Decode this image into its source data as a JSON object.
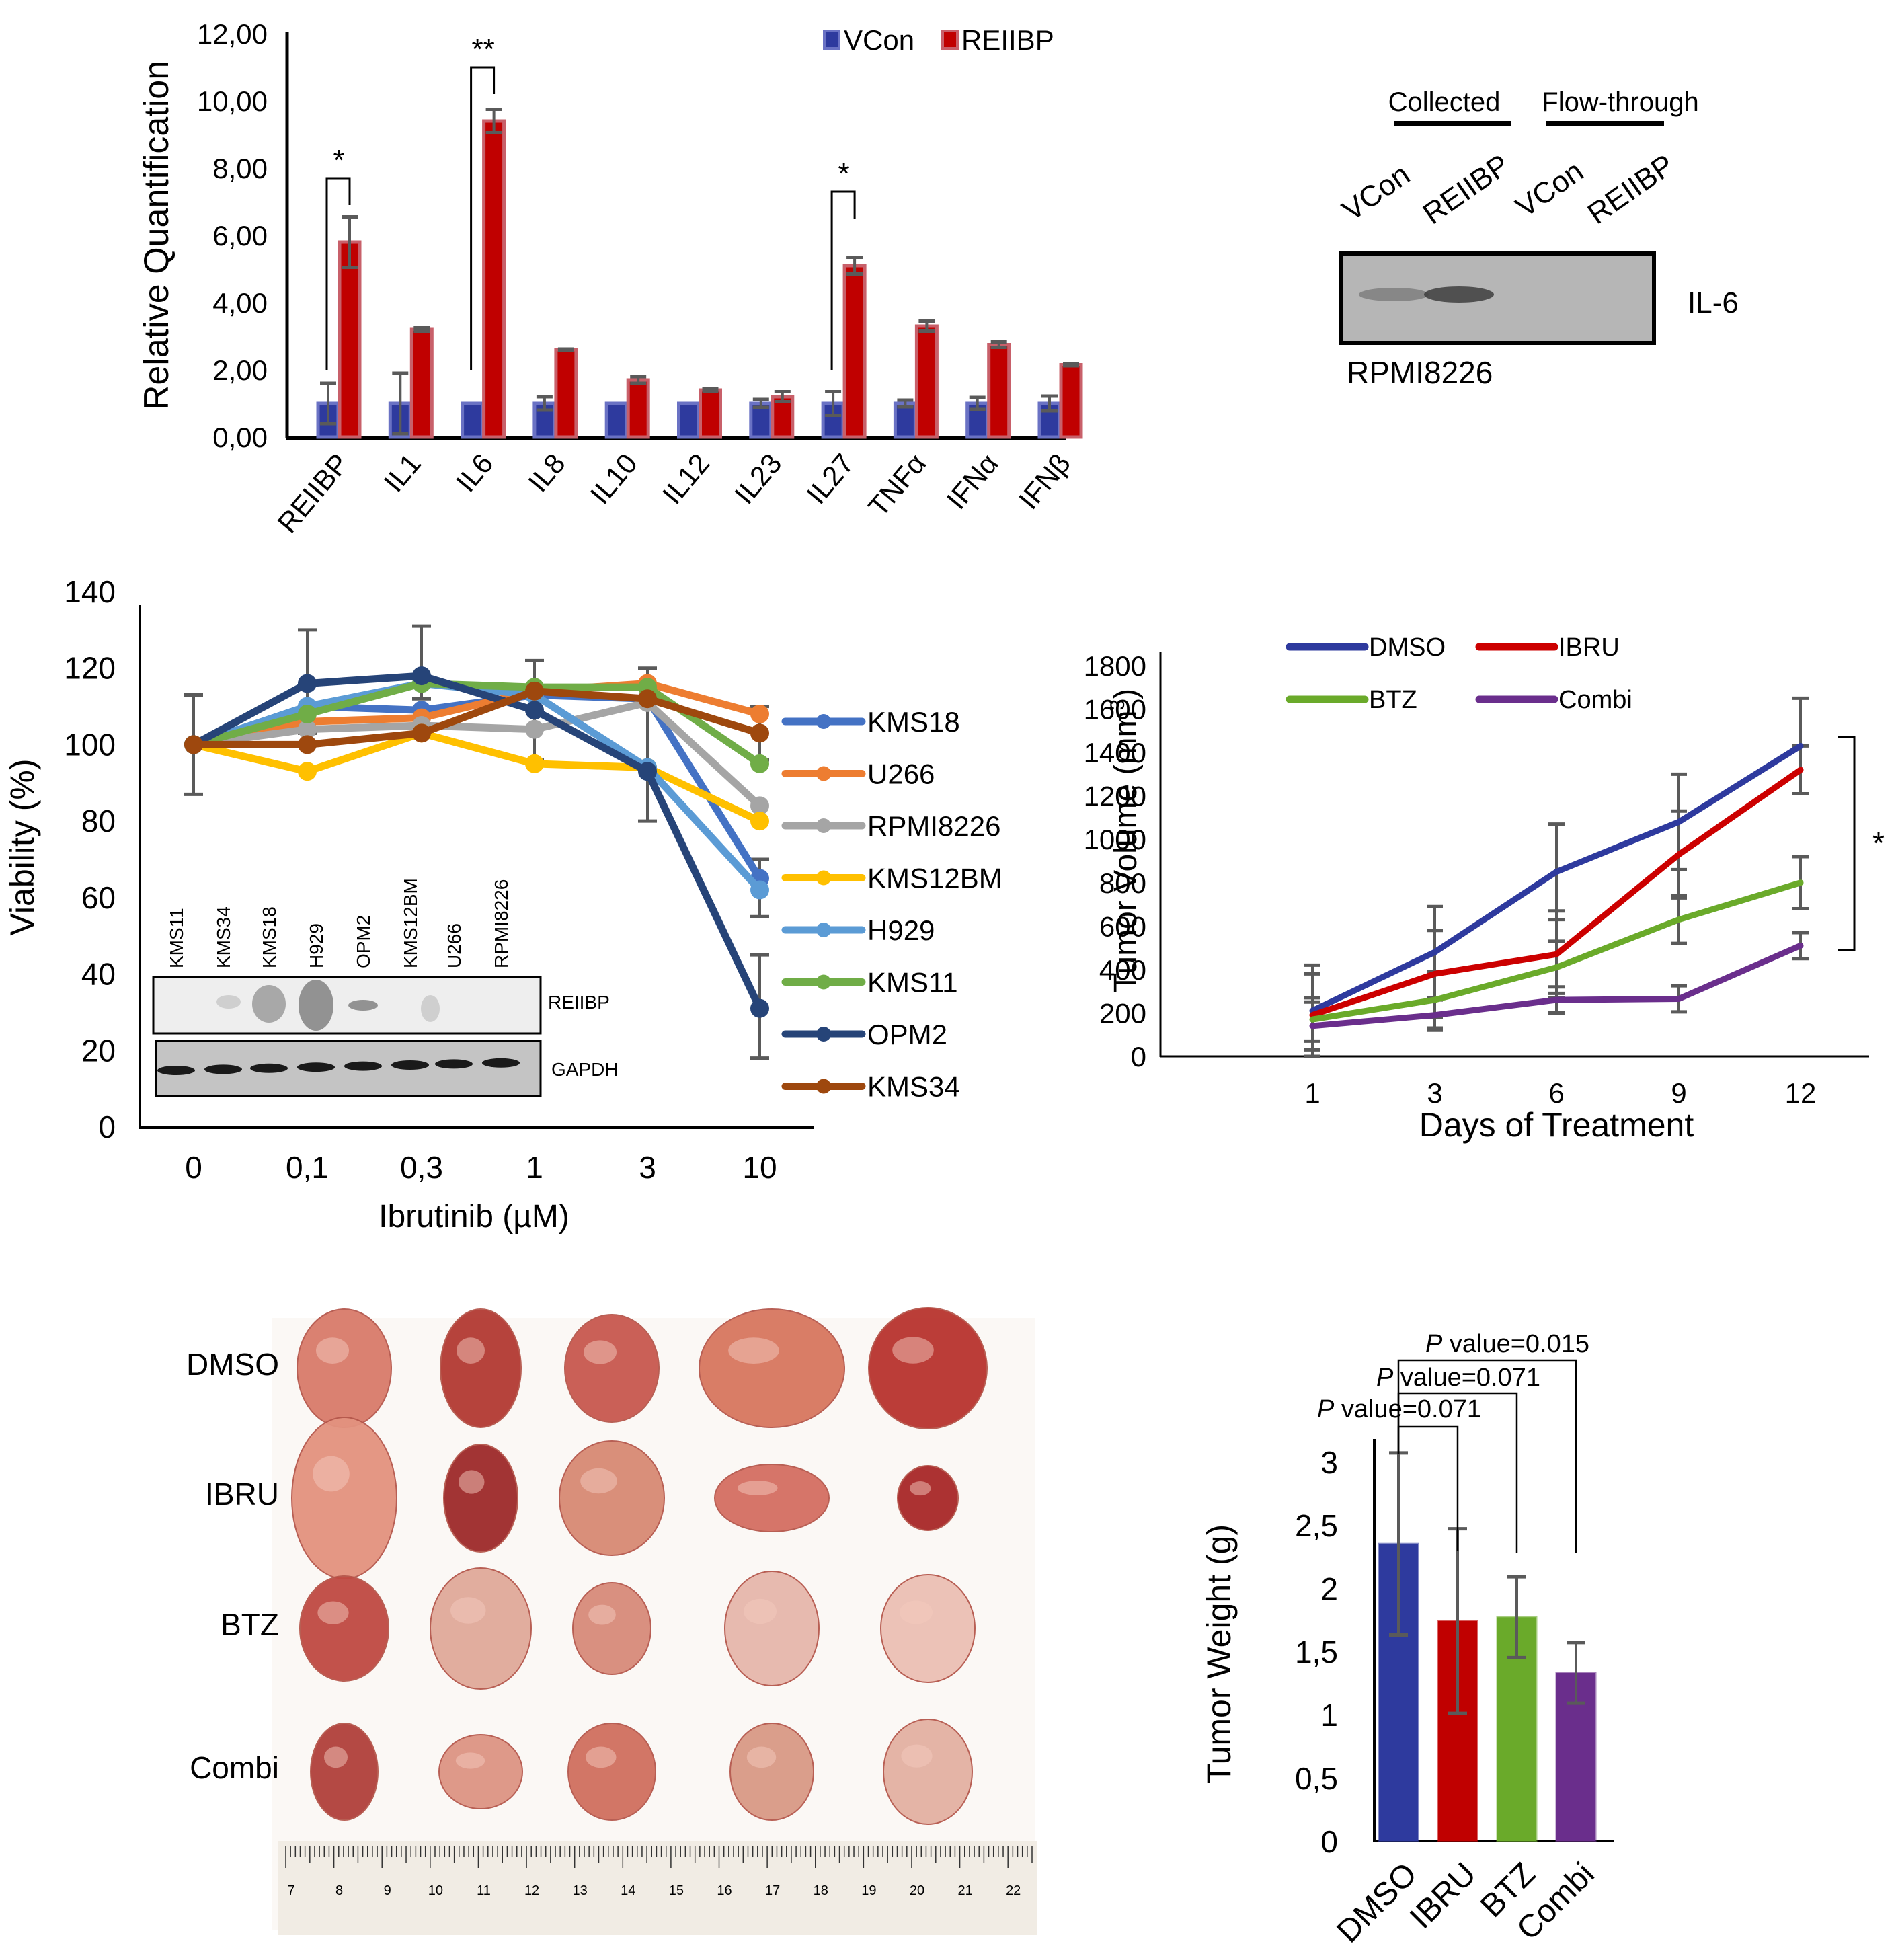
{
  "chart_data": [
    {
      "id": "panel_a",
      "type": "bar",
      "title": "",
      "xlabel": "",
      "ylabel": "Relative Quantification",
      "ylim": [
        0,
        12
      ],
      "yticks": [
        "0,00",
        "2,00",
        "4,00",
        "6,00",
        "8,00",
        "10,00",
        "12,00"
      ],
      "ytick_values": [
        0,
        2,
        4,
        6,
        8,
        10,
        12
      ],
      "legend_position": "top-right",
      "categories": [
        "REIIBP",
        "IL1",
        "IL6",
        "IL8",
        "IL10",
        "IL12",
        "IL23",
        "IL27",
        "TNFα",
        "IFNα",
        "IFNβ"
      ],
      "series": [
        {
          "name": "VCon",
          "color": "#2e3a9e",
          "values": [
            1.0,
            1.0,
            1.0,
            1.0,
            1.0,
            1.0,
            1.0,
            1.0,
            1.0,
            1.0,
            1.0
          ],
          "errors": [
            0.6,
            0.9,
            0.0,
            0.2,
            0.0,
            0.0,
            0.12,
            0.35,
            0.1,
            0.18,
            0.22
          ]
        },
        {
          "name": "REIIBP",
          "color": "#c00000",
          "values": [
            5.8,
            3.2,
            9.4,
            2.6,
            1.7,
            1.4,
            1.2,
            5.1,
            3.3,
            2.75,
            2.15
          ],
          "errors": [
            0.75,
            0.05,
            0.35,
            0.02,
            0.1,
            0.05,
            0.15,
            0.25,
            0.15,
            0.08,
            0.03
          ]
        }
      ],
      "annotations": [
        {
          "text": "*",
          "between": [
            "VCon REIIBP",
            "REIIBP REIIBP"
          ],
          "category": "REIIBP"
        },
        {
          "text": "**",
          "category": "IL6"
        },
        {
          "text": "*",
          "category": "IL27"
        }
      ]
    },
    {
      "id": "panel_c",
      "type": "line",
      "title": "",
      "xlabel": "Ibrutinib (µM)",
      "ylabel": "Viability (%)",
      "ylim": [
        0,
        140
      ],
      "yticks": [
        "0",
        "20",
        "40",
        "60",
        "80",
        "100",
        "120",
        "140"
      ],
      "ytick_values": [
        0,
        20,
        40,
        60,
        80,
        100,
        120,
        140
      ],
      "x": [
        "0",
        "0,1",
        "0,3",
        "1",
        "3",
        "10"
      ],
      "legend_position": "right",
      "series": [
        {
          "name": "KMS18",
          "color": "#4472c4",
          "values": [
            100,
            110,
            109,
            113,
            112,
            65
          ]
        },
        {
          "name": "U266",
          "color": "#ed7d31",
          "values": [
            100,
            106,
            107,
            114,
            116,
            108
          ]
        },
        {
          "name": "RPMI8226",
          "color": "#a5a5a5",
          "values": [
            100,
            104,
            105,
            104,
            111,
            84
          ]
        },
        {
          "name": "KMS12BM",
          "color": "#ffc000",
          "values": [
            100,
            93,
            103,
            95,
            94,
            80
          ]
        },
        {
          "name": "H929",
          "color": "#5b9bd5",
          "values": [
            100,
            110,
            116,
            113,
            94,
            62
          ]
        },
        {
          "name": "KMS11",
          "color": "#70ad47",
          "values": [
            100,
            108,
            116,
            115,
            115,
            95
          ]
        },
        {
          "name": "OPM2",
          "color": "#264478",
          "values": [
            100,
            116,
            118,
            109,
            93,
            31
          ]
        },
        {
          "name": "KMS34",
          "color": "#9e480e",
          "values": [
            100,
            100,
            103,
            114,
            112,
            103
          ]
        }
      ],
      "inset_blot": {
        "lanes": [
          "KMS11",
          "KMS34",
          "KMS18",
          "H929",
          "OPM2",
          "KMS12BM",
          "U266",
          "RPMI8226"
        ],
        "rows": [
          "REIIBP",
          "GAPDH"
        ]
      }
    },
    {
      "id": "panel_d",
      "type": "line",
      "title": "",
      "xlabel": "Days of Treatment",
      "ylabel": "Tumor Volume (mm³)",
      "ylabel_main": "Tumor Volume (mm",
      "ylabel_sup": "3",
      "ylabel_close": ")",
      "ylim": [
        0,
        1800
      ],
      "yticks": [
        "0",
        "200",
        "400",
        "600",
        "800",
        "1000",
        "1200",
        "1400",
        "1600",
        "1800"
      ],
      "ytick_values": [
        0,
        200,
        400,
        600,
        800,
        1000,
        1200,
        1400,
        1600,
        1800
      ],
      "x": [
        "1",
        "3",
        "6",
        "9",
        "12"
      ],
      "legend_position": "top",
      "series": [
        {
          "name": "DMSO",
          "color": "#2e3a9e",
          "values": [
            210,
            480,
            850,
            1080,
            1430
          ],
          "errors": [
            210,
            210,
            220,
            220,
            220
          ]
        },
        {
          "name": "IBRU",
          "color": "#cc0000",
          "values": [
            190,
            380,
            470,
            930,
            1320
          ],
          "errors": [
            190,
            200,
            200,
            200,
            110
          ]
        },
        {
          "name": "BTZ",
          "color": "#6aaa2a",
          "values": [
            170,
            260,
            410,
            630,
            800
          ],
          "errors": [
            100,
            130,
            120,
            110,
            120
          ]
        },
        {
          "name": "Combi",
          "color": "#6a2e8c",
          "values": [
            140,
            190,
            260,
            265,
            510
          ],
          "errors": [
            110,
            70,
            60,
            60,
            60
          ]
        }
      ],
      "annotations": [
        {
          "text": "*",
          "between": [
            "DMSO",
            "Combi"
          ],
          "x": "12"
        }
      ]
    },
    {
      "id": "panel_f",
      "type": "bar",
      "title": "",
      "xlabel": "",
      "ylabel": "Tumor Weight (g)",
      "ylim": [
        0,
        3
      ],
      "yticks": [
        "0",
        "0,5",
        "1",
        "1,5",
        "2",
        "2,5",
        "3"
      ],
      "ytick_values": [
        0,
        0.5,
        1,
        1.5,
        2,
        2.5,
        3
      ],
      "categories": [
        "DMSO",
        "IBRU",
        "BTZ",
        "Combi"
      ],
      "values": [
        2.35,
        1.74,
        1.77,
        1.33
      ],
      "errors": [
        0.72,
        0.73,
        0.32,
        0.24
      ],
      "colors": [
        "#2e3a9e",
        "#c00000",
        "#6aaa2a",
        "#6a2e8c"
      ],
      "annotations": [
        {
          "text_italic": "P",
          "text": " value=0.071",
          "between": [
            "DMSO",
            "IBRU"
          ]
        },
        {
          "text_italic": "P",
          "text": " value=0.071",
          "between": [
            "DMSO",
            "BTZ"
          ]
        },
        {
          "text_italic": "P",
          "text": " value=0.015",
          "between": [
            "DMSO",
            "Combi"
          ]
        }
      ]
    }
  ],
  "panel_b": {
    "group_labels": [
      "Collected",
      "Flow-through"
    ],
    "lane_labels": [
      "VCon",
      "REIIBP",
      "VCon",
      "REIIBP"
    ],
    "band_label": "IL-6",
    "cell_line": "RPMI8226"
  },
  "panel_e": {
    "row_labels": [
      "DMSO",
      "IBRU",
      "BTZ",
      "Combi"
    ],
    "tumors_per_row": 5,
    "ruler_labels": [
      "7",
      "8",
      "9",
      "10",
      "11",
      "12",
      "13",
      "14",
      "15",
      "16",
      "17",
      "18",
      "19",
      "20",
      "21",
      "22"
    ]
  }
}
